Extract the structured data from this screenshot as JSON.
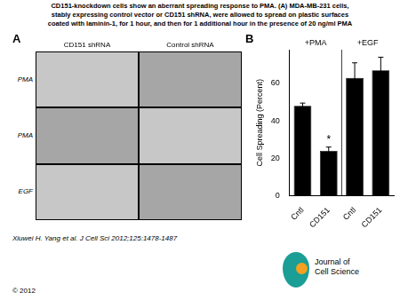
{
  "chart_data": {
    "type": "bar",
    "categories": [
      "Cntl",
      "CD151",
      "Cntl",
      "CD151"
    ],
    "values": [
      48,
      24,
      63,
      67
    ],
    "errors": [
      1.5,
      2.0,
      8.0,
      7.0
    ],
    "annotations": [
      null,
      "*",
      null,
      null
    ],
    "groups": [
      {
        "name": "+PMA",
        "count": 2
      },
      {
        "name": "+EGF",
        "count": 2
      }
    ],
    "color": "#000000",
    "y_label": "Cell Spreading (Percent)",
    "ylim": [
      0,
      78
    ],
    "yticks": [
      0,
      20,
      40,
      60
    ],
    "grid": false
  },
  "figure": {
    "title": [
      "CD151-knockdown cells show an aberrant spreading response to PMA. (A) MDA-MB-231 cells,",
      "stably expressing control vector or CD151 shRNA, were allowed to spread on plastic surfaces",
      "coated with laminin-1, for 1 hour, and then for 1 additional hour in the presence of 20 ng/ml PMA"
    ],
    "panel_labels": [
      "A",
      "B"
    ],
    "image_grid": {
      "columns": [
        "CD151 shRNA",
        "Control shRNA"
      ],
      "rows": [
        "PMA",
        "PMA",
        "EGF"
      ],
      "colors": [
        "#c7c7c7",
        "#a6a6a6"
      ]
    },
    "citation": "Xiuwei H. Yang et al. J Cell Sci 2012;125:1478-1487",
    "copyright": "© 2012",
    "logo": {
      "text": "Journal of\nCell Science",
      "colors": [
        "#1a9e96",
        "#f5a020"
      ]
    }
  }
}
